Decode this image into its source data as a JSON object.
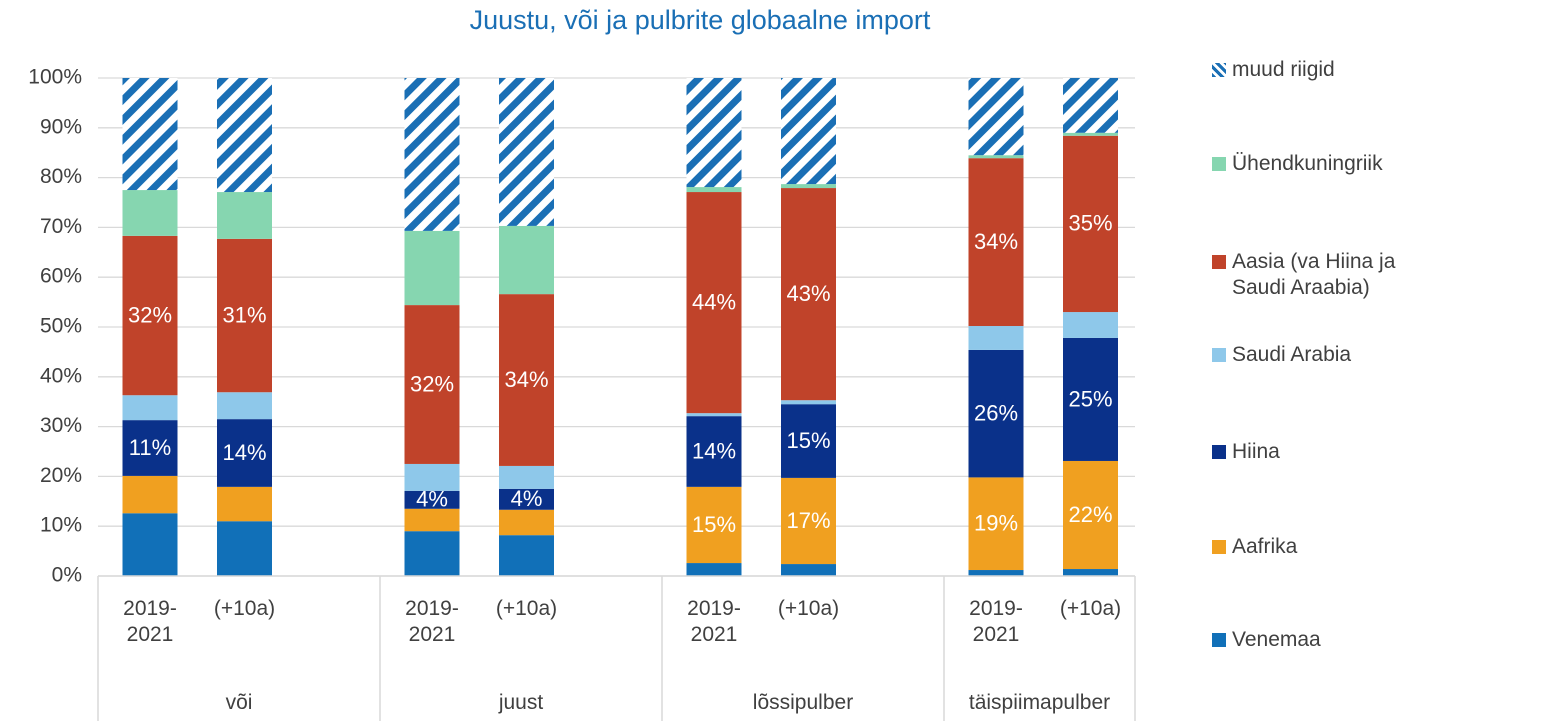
{
  "chart_data": {
    "type": "stacked_bar",
    "title": "Juustu, või ja pulbrite globaalne import",
    "groups": [
      "või",
      "juust",
      "lõssipulber",
      "täispiimapulber"
    ],
    "categories": [
      "2019-2021",
      "(+10a)",
      "2019-2021",
      "(+10a)",
      "2019-2021",
      "(+10a)",
      "2019-2021",
      "(+10a)"
    ],
    "ylim": [
      0,
      100
    ],
    "yticks": [
      {
        "value": 0,
        "label": "0%"
      },
      {
        "value": 10,
        "label": "10%"
      },
      {
        "value": 20,
        "label": "20%"
      },
      {
        "value": 30,
        "label": "30%"
      },
      {
        "value": 40,
        "label": "40%"
      },
      {
        "value": 50,
        "label": "50%"
      },
      {
        "value": 60,
        "label": "60%"
      },
      {
        "value": 70,
        "label": "70%"
      },
      {
        "value": 80,
        "label": "80%"
      },
      {
        "value": 90,
        "label": "90%"
      },
      {
        "value": 100,
        "label": "100%"
      }
    ],
    "grid": true,
    "series": [
      {
        "name": "Venemaa",
        "color": "#1170b8",
        "values": [
          12.6,
          11.0,
          9.0,
          8.2,
          2.6,
          2.4,
          1.2,
          1.4
        ]
      },
      {
        "name": "Aafrika",
        "color": "#f0a020",
        "values": [
          7.5,
          6.9,
          4.5,
          5.1,
          15.3,
          17.3,
          18.6,
          21.7
        ],
        "value_labels": [
          null,
          null,
          null,
          null,
          "15%",
          "17%",
          "19%",
          "22%"
        ]
      },
      {
        "name": "Hiina",
        "color": "#0a318a",
        "values": [
          11.2,
          13.6,
          3.6,
          4.2,
          14.2,
          14.8,
          25.6,
          24.7
        ],
        "value_labels": [
          "11%",
          "14%",
          "4%",
          "4%",
          "14%",
          "15%",
          "26%",
          "25%"
        ]
      },
      {
        "name": "Saudi Arabia",
        "color": "#8ec8ea",
        "values": [
          5.0,
          5.4,
          5.4,
          4.6,
          0.6,
          0.8,
          4.8,
          5.2
        ]
      },
      {
        "name": "Aasia (va Hiina ja Saudi Araabia)",
        "color": "#c0432a",
        "values": [
          32.0,
          30.8,
          31.9,
          34.5,
          44.4,
          42.6,
          33.7,
          35.4
        ],
        "value_labels": [
          "32%",
          "31%",
          "32%",
          "34%",
          "44%",
          "43%",
          "34%",
          "35%"
        ]
      },
      {
        "name": "Ühendkuningriik",
        "color": "#86d6b0",
        "values": [
          9.2,
          9.4,
          14.9,
          13.7,
          1.0,
          0.8,
          0.6,
          0.6
        ]
      },
      {
        "name": "muud riigid",
        "color": "#1a6fb5",
        "pattern": "hatch",
        "values": [
          22.5,
          22.9,
          30.7,
          29.7,
          21.9,
          21.3,
          15.5,
          11.0
        ]
      }
    ]
  }
}
